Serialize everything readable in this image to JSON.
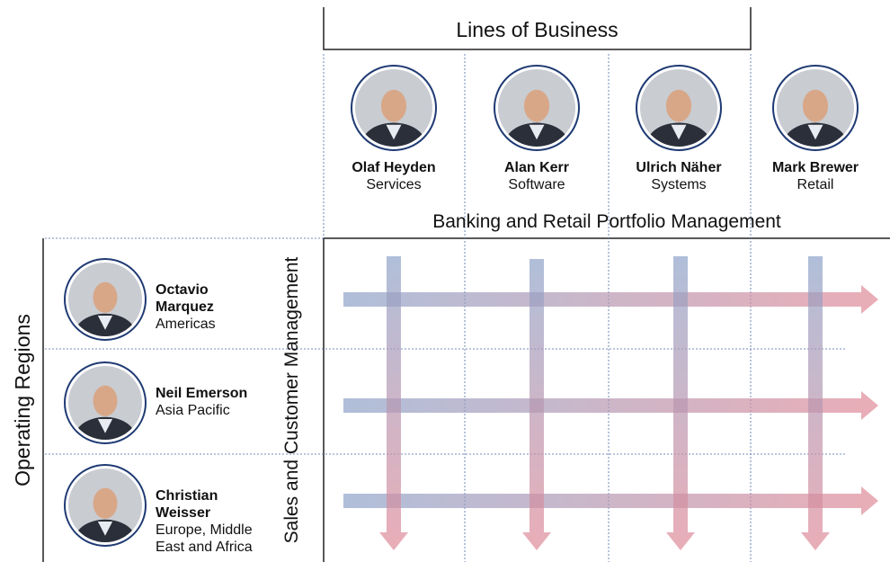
{
  "header": {
    "title": "Lines of Business"
  },
  "columns": [
    {
      "name": "Olaf Heyden",
      "role": "Services"
    },
    {
      "name": "Alan Kerr",
      "role": "Software"
    },
    {
      "name": "Ulrich Näher",
      "role": "Systems"
    },
    {
      "name": "Mark Brewer",
      "role": "Retail"
    }
  ],
  "column_footer": "Banking and Retail Portfolio Management",
  "rows_label": "Operating Regions",
  "rows_side_label": "Sales and Customer Management",
  "rows": [
    {
      "name": "Octavio Marquez",
      "region": "Americas"
    },
    {
      "name": "Neil Emerson",
      "region": "Asia Pacific"
    },
    {
      "name": "Christian Weisser",
      "region": "Europe, Middle East and Africa"
    }
  ]
}
